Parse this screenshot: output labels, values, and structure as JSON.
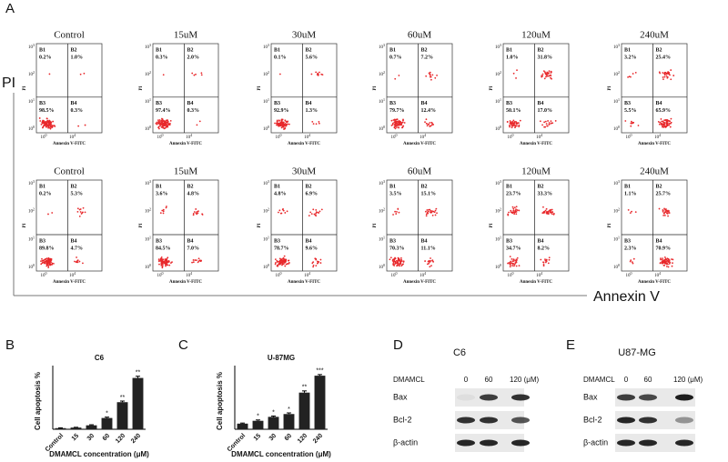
{
  "panel_labels": [
    "A",
    "B",
    "C",
    "D",
    "E"
  ],
  "flow": {
    "axis_y": "PI",
    "axis_x": "Annexin V",
    "plot_x_label": "Annexin V-FITC",
    "plot_y_label": "PI",
    "tick_base": "10",
    "y_tick_exponents": [
      "0",
      "1",
      "2",
      "3"
    ],
    "x_tick_exponents": [
      "0",
      "4"
    ],
    "quadrant_names": [
      "B1",
      "B2",
      "B3",
      "B4"
    ],
    "rows": [
      [
        {
          "title": "Control",
          "quadrants": [
            "0.2%",
            "1.0%",
            "98.5%",
            "0.3%"
          ]
        },
        {
          "title": "15uM",
          "quadrants": [
            "0.3%",
            "2.0%",
            "97.4%",
            "0.3%"
          ]
        },
        {
          "title": "30uM",
          "quadrants": [
            "0.1%",
            "5.6%",
            "92.9%",
            "1.3%"
          ]
        },
        {
          "title": "60uM",
          "quadrants": [
            "0.7%",
            "7.2%",
            "79.7%",
            "12.4%"
          ]
        },
        {
          "title": "120uM",
          "quadrants": [
            "1.0%",
            "31.8%",
            "50.1%",
            "17.0%"
          ]
        },
        {
          "title": "240uM",
          "quadrants": [
            "3.2%",
            "25.4%",
            "5.5%",
            "65.9%"
          ]
        }
      ],
      [
        {
          "title": "Control",
          "quadrants": [
            "0.2%",
            "5.3%",
            "89.8%",
            "4.7%"
          ]
        },
        {
          "title": "15uM",
          "quadrants": [
            "3.6%",
            "4.8%",
            "84.5%",
            "7.0%"
          ]
        },
        {
          "title": "30uM",
          "quadrants": [
            "4.8%",
            "6.9%",
            "78.7%",
            "9.6%"
          ]
        },
        {
          "title": "60uM",
          "quadrants": [
            "3.5%",
            "15.1%",
            "70.3%",
            "11.1%"
          ]
        },
        {
          "title": "120uM",
          "quadrants": [
            "23.7%",
            "33.3%",
            "34.7%",
            "8.2%"
          ]
        },
        {
          "title": "240uM",
          "quadrants": [
            "1.1%",
            "25.7%",
            "2.3%",
            "70.9%"
          ]
        }
      ]
    ]
  },
  "chart_data": [
    {
      "type": "bar",
      "title": "C6",
      "y_label": "Cell apoptosis %",
      "x_label": "DMAMCL concentration (μM)",
      "categories": [
        "Control",
        "15",
        "30",
        "60",
        "120",
        "240"
      ],
      "values": [
        2,
        3,
        7,
        20,
        48,
        91
      ],
      "errors": [
        0.5,
        0.5,
        1,
        1.5,
        2,
        3
      ],
      "annotations": [
        null,
        null,
        null,
        "*",
        "**",
        "**"
      ],
      "color": "#222222",
      "ylim": [
        0,
        100
      ]
    },
    {
      "type": "bar",
      "title": "U-87MG",
      "y_label": "Cell apoptosis %",
      "x_label": "DMAMCL concentration (μM)",
      "categories": [
        "Control",
        "15",
        "30",
        "60",
        "120",
        "240"
      ],
      "values": [
        10,
        15,
        22,
        27,
        65,
        95
      ],
      "errors": [
        1,
        1.5,
        1.5,
        2,
        3,
        2
      ],
      "annotations": [
        null,
        "*",
        "*",
        "*",
        "**",
        "***"
      ],
      "color": "#222222",
      "ylim": [
        0,
        100
      ]
    }
  ],
  "blots": [
    {
      "title": "C6",
      "treatment": "DMAMCL",
      "lanes": [
        "0",
        "60",
        "120 (μM)"
      ],
      "proteins": [
        "Bax",
        "Bcl-2",
        "β-actin"
      ]
    },
    {
      "title": "U87-MG",
      "treatment": "DMAMCL",
      "lanes": [
        "0",
        "60",
        "120 (μM)"
      ],
      "proteins": [
        "Bax",
        "Bcl-2",
        "β-actin"
      ]
    }
  ]
}
